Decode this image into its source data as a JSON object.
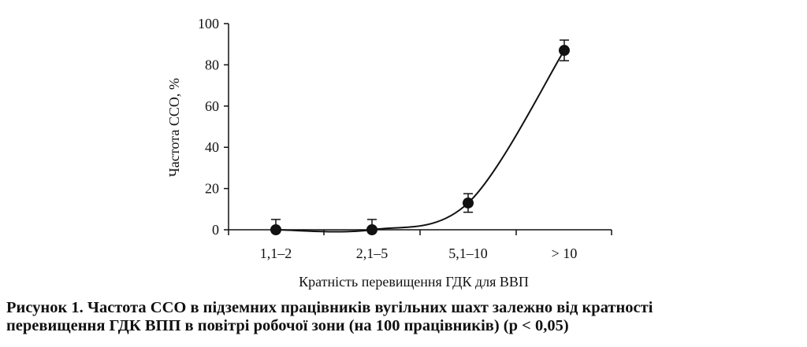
{
  "chart_data": {
    "type": "line",
    "categories": [
      "1,1–2",
      "2,1–5",
      "5,1–10",
      "> 10"
    ],
    "series": [
      {
        "values": [
          0,
          0,
          13,
          87
        ],
        "error_low": [
          0,
          0,
          8.5,
          82
        ],
        "error_high": [
          5,
          5,
          17.5,
          92
        ]
      }
    ],
    "ylim": [
      0,
      100
    ],
    "yticks": [
      0,
      20,
      40,
      60,
      80,
      100
    ],
    "xlabel": "Кратність перевищення ГДК для ВВП",
    "ylabel": "Частота ССО, %",
    "grid": false,
    "legend": "none",
    "colors": {
      "line": "#111111",
      "marker": "#111111"
    }
  },
  "caption": {
    "line1": "Рисунок 1. Частота ССО в підземних працівників вугільних шахт залежно від кратності",
    "line2": "перевищення ГДК ВПП в повітрі робочої зони (на 100 працівників) (р < 0,05)"
  }
}
